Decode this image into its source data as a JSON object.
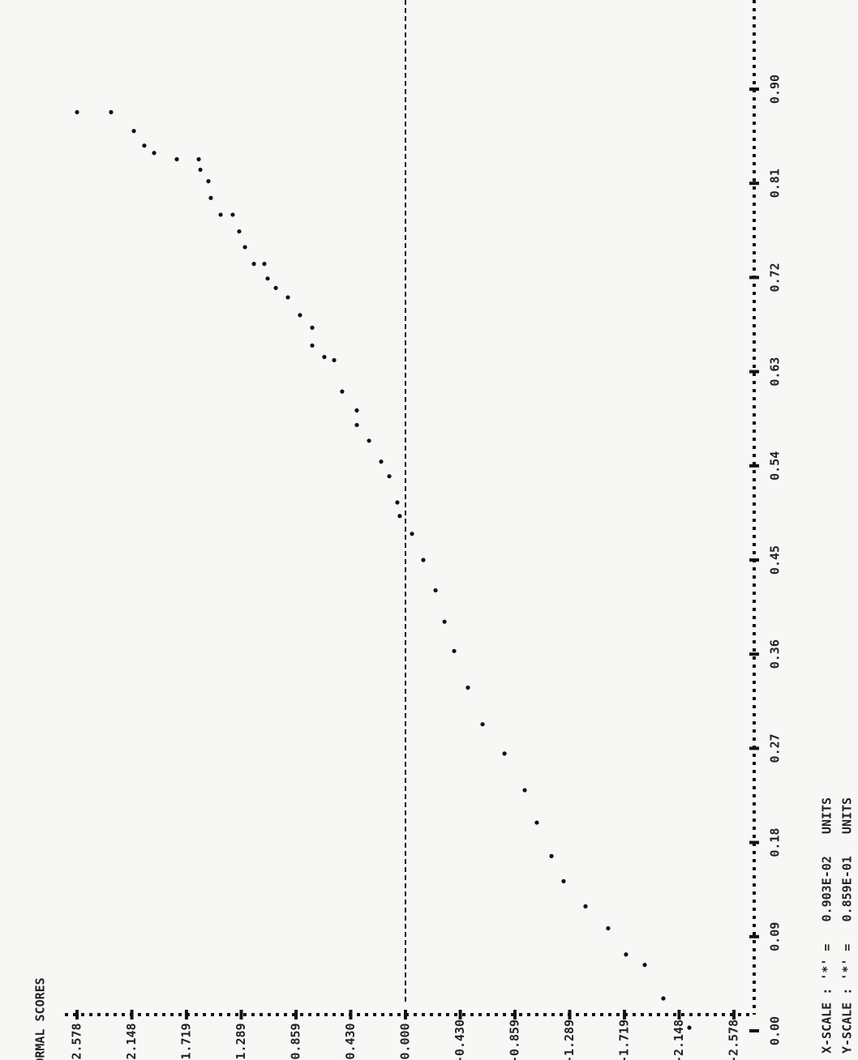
{
  "chart_data": {
    "type": "scatter",
    "title": "NORMAL SCORES",
    "notes": [
      "X-SCALE : '*' =   0.903E-02   UNITS",
      "Y-SCALE : '*' =   0.859E-01   UNITS"
    ],
    "xlim": [
      0,
      0.9
    ],
    "xticks": [
      {
        "value": 0,
        "label": "0.00"
      },
      0.09,
      0.18,
      0.27,
      0.36,
      0.45,
      0.54,
      0.63,
      0.72,
      0.81,
      {
        "value": 0.9,
        "label": "0.90"
      }
    ],
    "ylim": [
      -2.578,
      2.578
    ],
    "yticks": [
      2.578,
      2.148,
      1.719,
      1.289,
      0.859,
      {
        "value": 0.43,
        "label": "0.430"
      },
      {
        "value": 0,
        "label": "0.000"
      },
      {
        "value": -0.43,
        "label": "-0.430"
      },
      -0.859,
      -1.289,
      -1.719,
      -2.148,
      -2.578
    ],
    "color": "#111",
    "series": [
      {
        "x": [
          0.878,
          0.878,
          0.86,
          0.846,
          0.839,
          0.833,
          0.833,
          0.823,
          0.812,
          0.796,
          0.78,
          0.78,
          0.764,
          0.749,
          0.733,
          0.733,
          0.719,
          0.71,
          0.701,
          0.684,
          0.672,
          0.655,
          0.644,
          0.641,
          0.611,
          0.593,
          0.579,
          0.564,
          0.544,
          0.53,
          0.505,
          0.492,
          0.475,
          0.45,
          0.421,
          0.391,
          0.363,
          0.328,
          0.293,
          0.265,
          0.23,
          0.199,
          0.167,
          0.143,
          0.119,
          0.098,
          0.073,
          0.063,
          0.031,
          0.003
        ],
        "values": [
          2.578,
          2.311,
          2.132,
          2.05,
          1.973,
          1.795,
          1.623,
          1.61,
          1.547,
          1.528,
          1.451,
          1.356,
          1.305,
          1.26,
          1.19,
          1.108,
          1.082,
          1.018,
          0.923,
          0.828,
          0.732,
          0.732,
          0.637,
          0.56,
          0.497,
          0.382,
          0.382,
          0.286,
          0.191,
          0.127,
          0.064,
          0.045,
          -0.051,
          -0.14,
          -0.236,
          -0.306,
          -0.382,
          -0.49,
          -0.605,
          -0.777,
          -0.936,
          -1.031,
          -1.146,
          -1.241,
          -1.413,
          -1.591,
          -1.731,
          -1.878,
          -2.024,
          -2.228
        ]
      }
    ]
  }
}
